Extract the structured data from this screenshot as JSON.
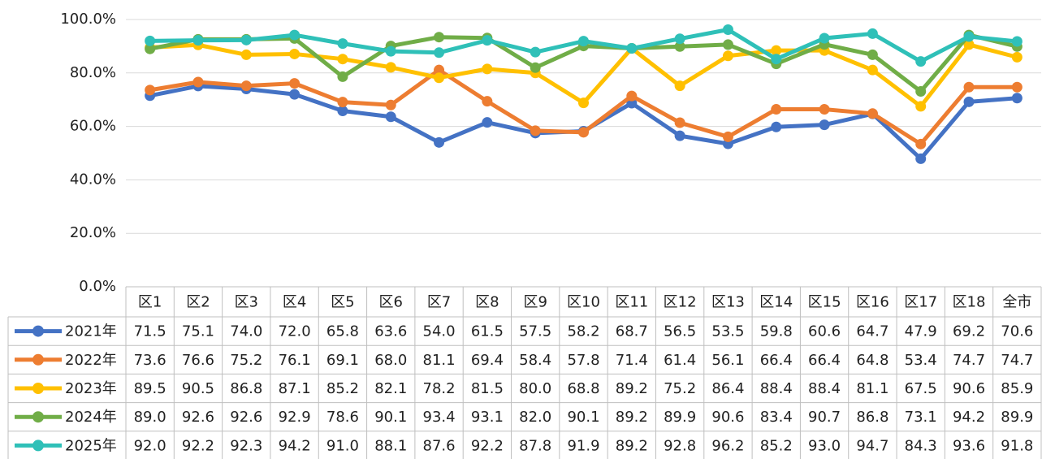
{
  "chart_data": {
    "type": "line",
    "categories": [
      "区1",
      "区2",
      "区3",
      "区4",
      "区5",
      "区6",
      "区7",
      "区8",
      "区9",
      "区10",
      "区11",
      "区12",
      "区13",
      "区14",
      "区15",
      "区16",
      "区17",
      "区18",
      "全市"
    ],
    "series": [
      {
        "name": "2021年",
        "color": "#4472c4",
        "values": [
          71.5,
          75.1,
          74.0,
          72.0,
          65.8,
          63.6,
          54.0,
          61.5,
          57.5,
          58.2,
          68.7,
          56.5,
          53.5,
          59.8,
          60.6,
          64.7,
          47.9,
          69.2,
          70.6
        ],
        "value_labels": [
          "71.5",
          "75.1",
          "74.0",
          "72.0",
          "65.8",
          "63.6",
          "54.0",
          "61.5",
          "57.5",
          "58.2",
          "68.7",
          "56.5",
          "53.5",
          "59.8",
          "60.6",
          "64.7",
          "47.9",
          "69.2",
          "70.6"
        ]
      },
      {
        "name": "2022年",
        "color": "#ed7d31",
        "values": [
          73.6,
          76.6,
          75.2,
          76.1,
          69.1,
          68.0,
          81.1,
          69.4,
          58.4,
          57.8,
          71.4,
          61.4,
          56.1,
          66.4,
          66.4,
          64.8,
          53.4,
          74.7,
          74.7
        ],
        "value_labels": [
          "73.6",
          "76.6",
          "75.2",
          "76.1",
          "69.1",
          "68.0",
          "81.1",
          "69.4",
          "58.4",
          "57.8",
          "71.4",
          "61.4",
          "56.1",
          "66.4",
          "66.4",
          "64.8",
          "53.4",
          "74.7",
          "74.7"
        ]
      },
      {
        "name": "2023年",
        "color": "#ffc000",
        "values": [
          89.5,
          90.5,
          86.8,
          87.1,
          85.2,
          82.1,
          78.2,
          81.5,
          80.0,
          68.8,
          89.2,
          75.2,
          86.4,
          88.4,
          88.4,
          81.1,
          67.5,
          90.6,
          85.9
        ],
        "value_labels": [
          "89.5",
          "90.5",
          "86.8",
          "87.1",
          "85.2",
          "82.1",
          "78.2",
          "81.5",
          "80.0",
          "68.8",
          "89.2",
          "75.2",
          "86.4",
          "88.4",
          "88.4",
          "81.1",
          "67.5",
          "90.6",
          "85.9"
        ]
      },
      {
        "name": "2024年",
        "color": "#70ad47",
        "values": [
          89.0,
          92.6,
          92.6,
          92.9,
          78.6,
          90.1,
          93.4,
          93.1,
          82.0,
          90.1,
          89.2,
          89.9,
          90.6,
          83.4,
          90.7,
          86.8,
          73.1,
          94.2,
          89.9
        ],
        "value_labels": [
          "89.0",
          "92.6",
          "92.6",
          "92.9",
          "78.6",
          "90.1",
          "93.4",
          "93.1",
          "82.0",
          "90.1",
          "89.2",
          "89.9",
          "90.6",
          "83.4",
          "90.7",
          "86.8",
          "73.1",
          "94.2",
          "89.9"
        ]
      },
      {
        "name": "2025年",
        "color": "#2fc0b8",
        "values": [
          92.0,
          92.2,
          92.3,
          94.2,
          91.0,
          88.1,
          87.6,
          92.2,
          87.8,
          91.9,
          89.2,
          92.8,
          96.2,
          85.2,
          93.0,
          94.7,
          84.3,
          93.6,
          91.8
        ],
        "value_labels": [
          "92.0",
          "92.2",
          "92.3",
          "94.2",
          "91.0",
          "88.1",
          "87.6",
          "92.2",
          "87.8",
          "91.9",
          "89.2",
          "92.8",
          "96.2",
          "85.2",
          "93.0",
          "94.7",
          "84.3",
          "93.6",
          "91.8"
        ]
      }
    ],
    "ylim": [
      0,
      100
    ],
    "yticks": [
      {
        "value": 0,
        "label": "0.0%"
      },
      {
        "value": 20,
        "label": "20.0%"
      },
      {
        "value": 40,
        "label": "40.0%"
      },
      {
        "value": 60,
        "label": "60.0%"
      },
      {
        "value": 80,
        "label": "80.0%"
      },
      {
        "value": 100,
        "label": "100.0%"
      }
    ],
    "grid": true
  }
}
